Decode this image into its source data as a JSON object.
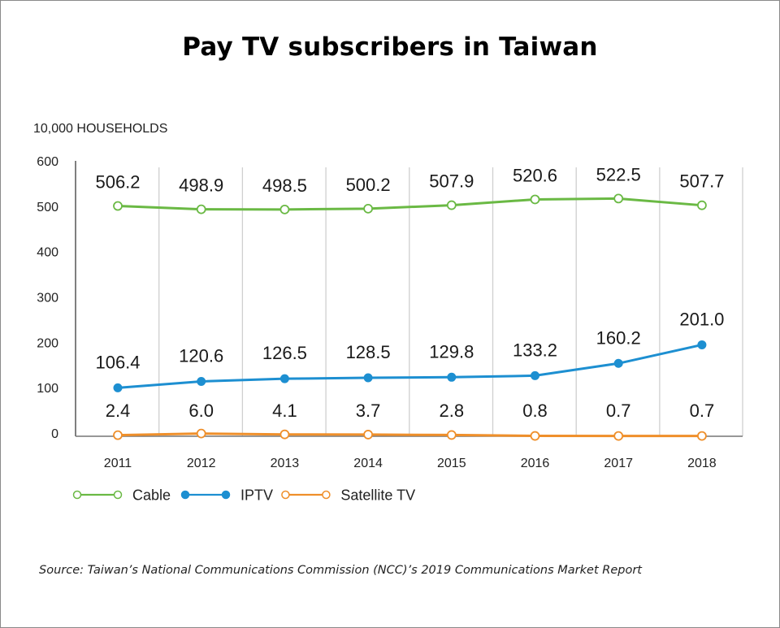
{
  "chart_data": {
    "type": "line",
    "title": "Pay TV subscribers in Taiwan",
    "ylabel": "10,000 HOUSEHOLDS",
    "xlabel": "",
    "x": [
      "2011",
      "2012",
      "2013",
      "2014",
      "2015",
      "2016",
      "2017",
      "2018"
    ],
    "ylim": [
      0,
      600
    ],
    "yticks": [
      "0",
      "100",
      "200",
      "300",
      "400",
      "500",
      "600"
    ],
    "grid": "vertical",
    "legend_position": "bottom-left",
    "series": [
      {
        "name": "Cable",
        "color": "#6ab944",
        "marker": "hollow-circle",
        "values": [
          506.2,
          498.9,
          498.5,
          500.2,
          507.9,
          520.6,
          522.5,
          507.7
        ],
        "labels": [
          "506.2",
          "498.9",
          "498.5",
          "500.2",
          "507.9",
          "520.6",
          "522.5",
          "507.7"
        ]
      },
      {
        "name": "IPTV",
        "color": "#1d8fd1",
        "marker": "filled-circle",
        "values": [
          106.4,
          120.6,
          126.5,
          128.5,
          129.8,
          133.2,
          160.2,
          201.0
        ],
        "labels": [
          "106.4",
          "120.6",
          "126.5",
          "128.5",
          "129.8",
          "133.2",
          "160.2",
          "201.0"
        ]
      },
      {
        "name": "Satellite TV",
        "color": "#ef8f2a",
        "marker": "hollow-circle",
        "values": [
          2.4,
          6.0,
          4.1,
          3.7,
          2.8,
          0.8,
          0.7,
          0.7
        ],
        "labels": [
          "2.4",
          "6.0",
          "4.1",
          "3.7",
          "2.8",
          "0.8",
          "0.7",
          "0.7"
        ]
      }
    ]
  },
  "source": "Source: Taiwan’s National Communications Commission (NCC)’s 2019 Communications Market Report"
}
